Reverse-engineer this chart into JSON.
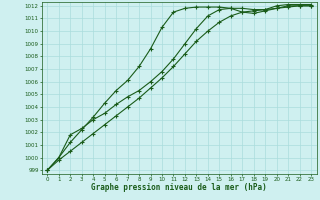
{
  "title": "Graphe pression niveau de la mer (hPa)",
  "bg_color": "#cff0f0",
  "grid_color": "#aadddd",
  "line_color": "#1a5c1a",
  "x_ticks": [
    0,
    1,
    2,
    3,
    4,
    5,
    6,
    7,
    8,
    9,
    10,
    11,
    12,
    13,
    14,
    15,
    16,
    17,
    18,
    19,
    20,
    21,
    22,
    23
  ],
  "y_min": 999,
  "y_max": 1012,
  "y_ticks": [
    999,
    1000,
    1001,
    1002,
    1003,
    1004,
    1005,
    1006,
    1007,
    1008,
    1009,
    1010,
    1011,
    1012
  ],
  "line1": [
    999.0,
    1000.0,
    1001.2,
    1002.2,
    1003.2,
    1004.3,
    1005.3,
    1006.1,
    1007.2,
    1008.6,
    1010.3,
    1011.5,
    1011.8,
    1011.9,
    1011.9,
    1011.9,
    1011.8,
    1011.8,
    1011.7,
    1011.7,
    1012.0,
    1012.1,
    1012.1,
    1012.1
  ],
  "line2": [
    999.0,
    1000.0,
    1001.8,
    1002.3,
    1003.0,
    1003.5,
    1004.2,
    1004.8,
    1005.3,
    1006.0,
    1006.8,
    1007.8,
    1009.0,
    1010.2,
    1011.2,
    1011.7,
    1011.8,
    1011.5,
    1011.4,
    1011.6,
    1011.8,
    1012.0,
    1012.0,
    1012.0
  ],
  "line3": [
    999.0,
    999.8,
    1000.5,
    1001.2,
    1001.9,
    1002.6,
    1003.3,
    1004.0,
    1004.7,
    1005.5,
    1006.3,
    1007.2,
    1008.2,
    1009.2,
    1010.0,
    1010.7,
    1011.2,
    1011.5,
    1011.6,
    1011.7,
    1011.8,
    1011.9,
    1012.0,
    1012.0
  ]
}
